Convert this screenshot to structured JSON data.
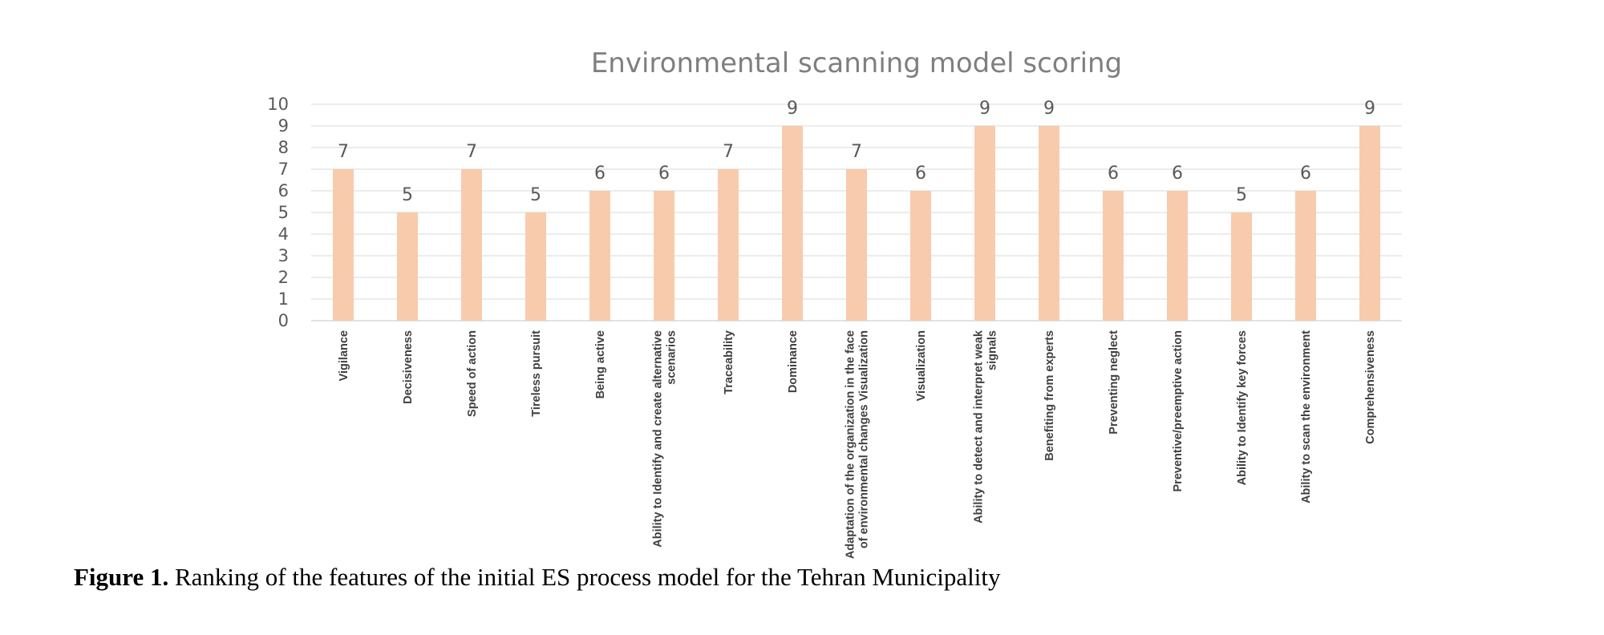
{
  "chart_data": {
    "type": "bar",
    "title": "Environmental scanning model scoring",
    "xlabel": "",
    "ylabel": "",
    "ylim": [
      0,
      10
    ],
    "y_ticks": [
      "0",
      "1",
      "2",
      "3",
      "4",
      "5",
      "6",
      "7",
      "8",
      "9",
      "10"
    ],
    "grid": true,
    "bar_color": "#f8cbad",
    "categories": [
      [
        "Vigilance"
      ],
      [
        "Decisiveness"
      ],
      [
        "Speed of action"
      ],
      [
        "Tireless pursuit"
      ],
      [
        "Being active"
      ],
      [
        "Ability to Identify and create alternative",
        "scenarios"
      ],
      [
        "Traceability"
      ],
      [
        "Dominance"
      ],
      [
        "Adaptation of the organization in the face",
        "of environmental changes Visualization"
      ],
      [
        "Visualization"
      ],
      [
        "Ability to detect and interpret weak",
        "signals"
      ],
      [
        "Benefiting from experts"
      ],
      [
        "Preventing neglect"
      ],
      [
        "Preventive/preemptive action"
      ],
      [
        "Ability to Identify key forces"
      ],
      [
        "Ability to scan the environment"
      ],
      [
        "Comprehensiveness"
      ]
    ],
    "values": [
      7,
      5,
      7,
      5,
      6,
      6,
      7,
      9,
      7,
      6,
      9,
      9,
      6,
      6,
      5,
      6,
      9
    ],
    "data_labels": [
      "7",
      "5",
      "7",
      "5",
      "6",
      "6",
      "7",
      "9",
      "7",
      "6",
      "9",
      "9",
      "6",
      "6",
      "5",
      "6",
      "9"
    ]
  },
  "caption": {
    "label": "Figure 1.",
    "text": " Ranking of the features of the initial ES process model for the Tehran Municipality"
  }
}
